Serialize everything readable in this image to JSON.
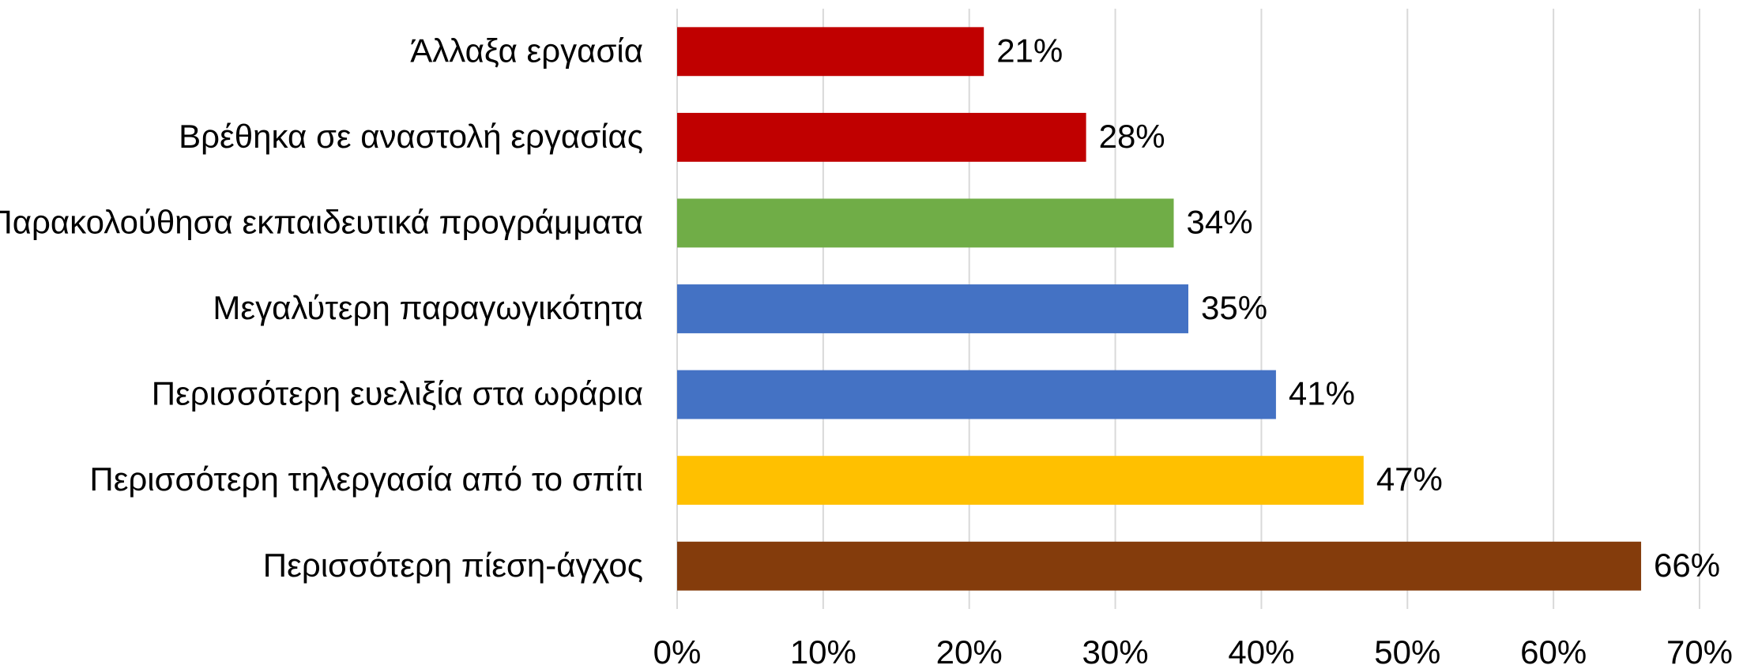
{
  "chart_data": {
    "type": "barh",
    "categories": [
      "Άλλαξα εργασία",
      "Βρέθηκα σε αναστολή εργασίας",
      "Παρακολούθησα εκπαιδευτικά προγράμματα",
      "Μεγαλύτερη παραγωγικότητα",
      "Περισσότερη ευελιξία στα ωράρια",
      "Περισσότερη τηλεργασία από το σπίτι",
      "Περισσότερη πίεση-άγχος"
    ],
    "values": [
      21,
      28,
      34,
      35,
      41,
      47,
      66
    ],
    "value_labels": [
      "21%",
      "28%",
      "34%",
      "35%",
      "41%",
      "47%",
      "66%"
    ],
    "colors": [
      "#c00000",
      "#c00000",
      "#70ad47",
      "#4472c4",
      "#4472c4",
      "#ffc000",
      "#843c0c"
    ],
    "xlim": [
      0,
      70
    ],
    "xticks": [
      {
        "value": 0,
        "label": "0%"
      },
      {
        "value": 10,
        "label": "10%"
      },
      {
        "value": 20,
        "label": "20%"
      },
      {
        "value": 30,
        "label": "30%"
      },
      {
        "value": 40,
        "label": "40%"
      },
      {
        "value": 50,
        "label": "50%"
      },
      {
        "value": 60,
        "label": "60%"
      },
      {
        "value": 70,
        "label": "70%"
      }
    ],
    "grid": true
  }
}
